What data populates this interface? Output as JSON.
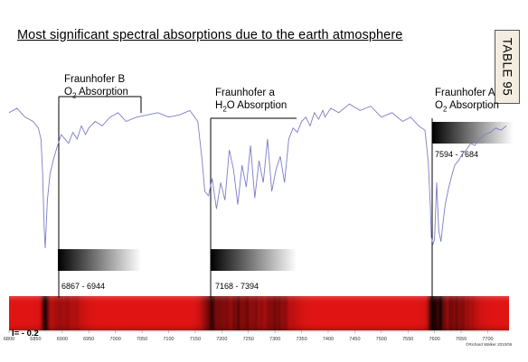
{
  "title": "Most significant spectral absorptions due to the earth atmosphere",
  "table_tag": "TABLE 95",
  "bands": [
    {
      "name": "Fraunhofer B",
      "molecule_pre": "O",
      "molecule_sub": "2",
      "molecule_post": " Absorption",
      "range": "6867 - 6944"
    },
    {
      "name": "Fraunhofer a",
      "molecule_pre": "H",
      "molecule_sub": "2",
      "molecule_post": "O Absorption",
      "range": "7168 - 7394"
    },
    {
      "name": "Fraunhofer A",
      "molecule_pre": "O",
      "molecule_sub": "2",
      "molecule_post": " Absorption",
      "range": "7594 - 7684"
    }
  ],
  "intensity_label": "I= - 0.2",
  "credit": "©Richard Walker 2010/06",
  "colors": {
    "line": "#7b7dc8",
    "band_red": "#e01414",
    "band_dark": "#2a0000"
  },
  "chart_data": {
    "type": "line",
    "title": "Most significant spectral absorptions due to the earth atmosphere",
    "xlabel": "",
    "ylabel": "",
    "xlim": [
      6800,
      7740
    ],
    "x_ticks": [
      "6800",
      "6850",
      "6900",
      "6950",
      "7000",
      "7050",
      "7100",
      "7150",
      "7200",
      "7250",
      "7300",
      "7350",
      "7400",
      "7450",
      "7500",
      "7550",
      "7600",
      "7650",
      "7700"
    ],
    "grid": false,
    "series": [
      {
        "x": [
          6800,
          6815,
          6830,
          6845,
          6855,
          6860,
          6863,
          6866,
          6868,
          6872,
          6877,
          6883,
          6890,
          6898,
          6905,
          6912,
          6920,
          6928,
          6936,
          6944,
          6950,
          6962,
          6975,
          6990,
          7005,
          7020,
          7040,
          7060,
          7080,
          7100,
          7120,
          7140,
          7155,
          7163,
          7168,
          7175,
          7182,
          7190,
          7198,
          7206,
          7214,
          7222,
          7230,
          7238,
          7246,
          7254,
          7262,
          7270,
          7278,
          7286,
          7294,
          7302,
          7310,
          7318,
          7326,
          7334,
          7342,
          7350,
          7358,
          7366,
          7374,
          7382,
          7390,
          7394,
          7405,
          7420,
          7440,
          7460,
          7480,
          7500,
          7520,
          7540,
          7555,
          7570,
          7582,
          7588,
          7592,
          7594,
          7597,
          7600,
          7604,
          7608,
          7612,
          7616,
          7620,
          7626,
          7632,
          7638,
          7645,
          7652,
          7660,
          7668,
          7676,
          7684,
          7695,
          7705,
          7715,
          7725,
          7735
        ],
        "y": [
          0.62,
          0.64,
          0.6,
          0.58,
          0.55,
          0.5,
          0.35,
          0.1,
          0.0,
          0.22,
          0.34,
          0.4,
          0.46,
          0.52,
          0.5,
          0.48,
          0.53,
          0.5,
          0.56,
          0.52,
          0.55,
          0.58,
          0.56,
          0.6,
          0.62,
          0.58,
          0.6,
          0.61,
          0.62,
          0.6,
          0.61,
          0.63,
          0.58,
          0.4,
          0.26,
          0.24,
          0.32,
          0.18,
          0.3,
          0.22,
          0.45,
          0.36,
          0.2,
          0.38,
          0.28,
          0.47,
          0.23,
          0.4,
          0.3,
          0.5,
          0.26,
          0.36,
          0.42,
          0.3,
          0.5,
          0.55,
          0.53,
          0.58,
          0.6,
          0.56,
          0.62,
          0.59,
          0.63,
          0.6,
          0.64,
          0.62,
          0.66,
          0.63,
          0.65,
          0.6,
          0.62,
          0.58,
          0.6,
          0.56,
          0.54,
          0.4,
          0.2,
          0.05,
          0.02,
          0.04,
          0.3,
          0.08,
          0.03,
          0.12,
          0.2,
          0.27,
          0.33,
          0.38,
          0.4,
          0.43,
          0.45,
          0.48,
          0.47,
          0.5,
          0.52,
          0.53,
          0.55,
          0.54,
          0.56
        ]
      }
    ]
  }
}
